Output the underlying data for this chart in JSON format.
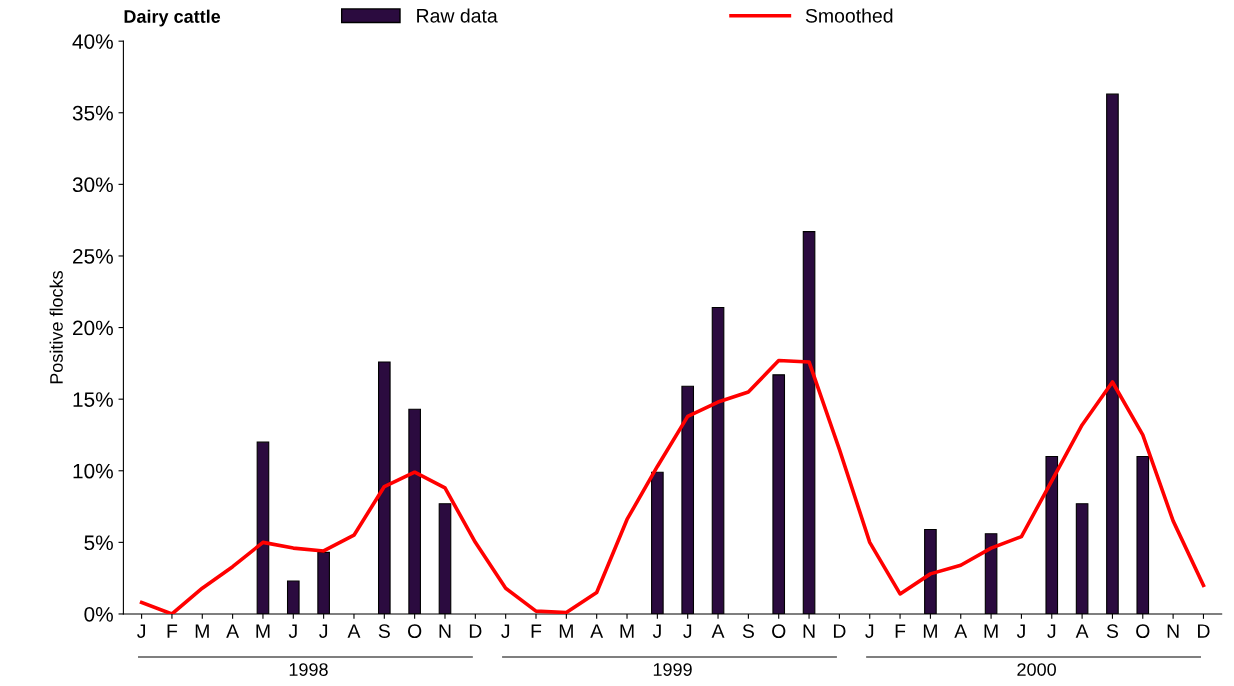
{
  "chart_data": {
    "type": "bar",
    "title": "Dairy cattle",
    "ylabel": "Positive flocks",
    "categories": [
      "J",
      "F",
      "M",
      "A",
      "M",
      "J",
      "J",
      "A",
      "S",
      "O",
      "N",
      "D",
      "J",
      "F",
      "M",
      "A",
      "M",
      "J",
      "J",
      "A",
      "S",
      "O",
      "N",
      "D",
      "J",
      "F",
      "M",
      "A",
      "M",
      "J",
      "J",
      "A",
      "S",
      "O",
      "N",
      "D"
    ],
    "series": [
      {
        "name": "Raw data",
        "color": "#2b0b3f",
        "values": [
          null,
          null,
          null,
          null,
          12.0,
          2.3,
          4.3,
          null,
          17.6,
          14.3,
          7.7,
          null,
          null,
          null,
          null,
          null,
          null,
          9.9,
          15.9,
          21.4,
          null,
          16.7,
          26.7,
          null,
          null,
          null,
          5.9,
          null,
          5.6,
          null,
          11.0,
          7.7,
          36.3,
          11.0,
          null,
          null
        ]
      },
      {
        "name": "Smoothed",
        "type": "line",
        "color": "#ff0000",
        "values": [
          0.8,
          0,
          1.8,
          3.3,
          5.0,
          4.6,
          4.4,
          5.5,
          8.9,
          9.9,
          8.8,
          5.0,
          1.8,
          0.2,
          0.1,
          1.5,
          6.6,
          10.3,
          13.8,
          14.8,
          15.5,
          17.7,
          17.6,
          11.5,
          5.0,
          1.4,
          2.8,
          3.4,
          4.6,
          5.4,
          9.3,
          13.2,
          16.2,
          12.5,
          6.5,
          2.0
        ]
      }
    ],
    "ylim": [
      0,
      40
    ],
    "yticks": [
      {
        "value": 0,
        "label": "0%"
      },
      {
        "value": 5,
        "label": "5%"
      },
      {
        "value": 10,
        "label": "10%"
      },
      {
        "value": 15,
        "label": "15%"
      },
      {
        "value": 20,
        "label": "20%"
      },
      {
        "value": 25,
        "label": "25%"
      },
      {
        "value": 30,
        "label": "30%"
      },
      {
        "value": 35,
        "label": "35%"
      },
      {
        "value": 40,
        "label": "40%"
      }
    ],
    "annotations": [
      "1998",
      "1999",
      "2000"
    ],
    "legend": "top",
    "grid": false
  }
}
